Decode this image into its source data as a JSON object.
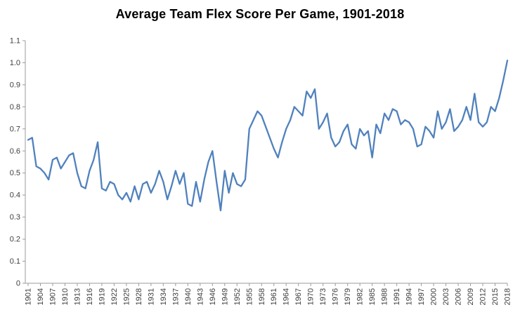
{
  "chart_data": {
    "type": "line",
    "title": "Average Team Flex Score Per Game, 1901-2018",
    "xlabel": "",
    "ylabel": "",
    "x_start": 1901,
    "x_end": 2018,
    "ylim": [
      0,
      1.1
    ],
    "y_tick_step": 0.1,
    "y_tick_labels": [
      "0",
      "0.1",
      "0.2",
      "0.3",
      "0.4",
      "0.5",
      "0.6",
      "0.7",
      "0.8",
      "0.9",
      "1.0",
      "1.1"
    ],
    "x_tick_labels": [
      "1901",
      "1904",
      "1907",
      "1910",
      "1913",
      "1916",
      "1919",
      "1922",
      "1925",
      "1928",
      "1931",
      "1934",
      "1937",
      "1940",
      "1943",
      "1946",
      "1949",
      "1952",
      "1955",
      "1958",
      "1961",
      "1964",
      "1967",
      "1970",
      "1973",
      "1976",
      "1979",
      "1982",
      "1985",
      "1988",
      "1991",
      "1994",
      "1997",
      "2000",
      "2003",
      "2006",
      "2009",
      "2012",
      "2015",
      "2018"
    ],
    "legend": "none",
    "grid": "off",
    "line_color": "#4F81BD",
    "axis_color": "#9b9b9b",
    "label_color": "#3f3f3f",
    "series": [
      {
        "name": "Average Team Flex Score Per Game",
        "values": [
          0.65,
          0.66,
          0.53,
          0.52,
          0.5,
          0.47,
          0.56,
          0.57,
          0.52,
          0.55,
          0.58,
          0.59,
          0.5,
          0.44,
          0.43,
          0.51,
          0.56,
          0.64,
          0.43,
          0.42,
          0.46,
          0.45,
          0.4,
          0.38,
          0.41,
          0.37,
          0.44,
          0.38,
          0.45,
          0.46,
          0.41,
          0.45,
          0.51,
          0.46,
          0.38,
          0.44,
          0.51,
          0.45,
          0.5,
          0.36,
          0.35,
          0.46,
          0.37,
          0.47,
          0.55,
          0.6,
          0.46,
          0.33,
          0.51,
          0.41,
          0.5,
          0.45,
          0.44,
          0.47,
          0.7,
          0.74,
          0.78,
          0.76,
          0.71,
          0.66,
          0.61,
          0.57,
          0.64,
          0.7,
          0.74,
          0.8,
          0.78,
          0.76,
          0.87,
          0.84,
          0.88,
          0.7,
          0.73,
          0.77,
          0.66,
          0.62,
          0.64,
          0.69,
          0.72,
          0.63,
          0.61,
          0.7,
          0.67,
          0.69,
          0.57,
          0.72,
          0.68,
          0.77,
          0.74,
          0.79,
          0.78,
          0.72,
          0.74,
          0.73,
          0.7,
          0.62,
          0.63,
          0.71,
          0.69,
          0.66,
          0.78,
          0.7,
          0.73,
          0.79,
          0.69,
          0.71,
          0.74,
          0.8,
          0.74,
          0.86,
          0.73,
          0.71,
          0.73,
          0.8,
          0.78,
          0.84,
          0.92,
          1.01
        ]
      }
    ]
  }
}
